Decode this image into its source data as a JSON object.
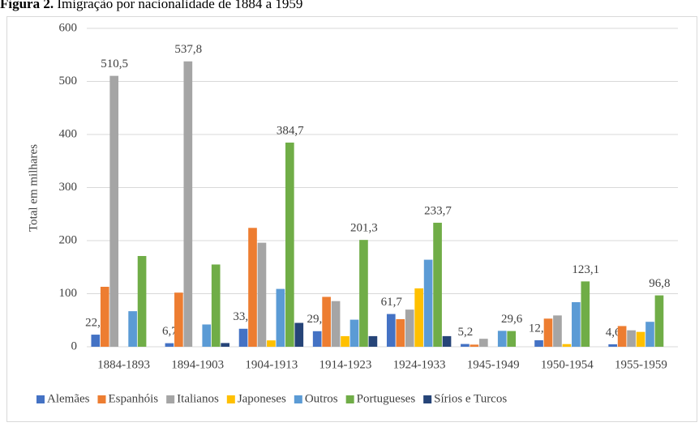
{
  "chart_data": {
    "type": "bar",
    "title_label": "Figura 2.",
    "title": "Imigração por nacionalidade de 1884 a 1959",
    "y_label": "Total em milhares",
    "categories": [
      "1884-1893",
      "1894-1903",
      "1904-1913",
      "1914-1923",
      "1924-1933",
      "1945-1949",
      "1950-1954",
      "1955-1959"
    ],
    "series": [
      {
        "name": "Alemães",
        "color": "#4472c4",
        "values": [
          22.8,
          6.7,
          33.9,
          29.3,
          61.7,
          5.2,
          12.2,
          4.6
        ],
        "value_labels": [
          "22,8",
          "6,7",
          "33,9",
          "29,3",
          "61,7",
          "5,2",
          "12,2",
          "4,6"
        ]
      },
      {
        "name": "Espanhóis",
        "color": "#ed7d31",
        "values": [
          113,
          102,
          224,
          94,
          52,
          4,
          53,
          39
        ]
      },
      {
        "name": "Italianos",
        "color": "#a5a5a5",
        "values": [
          510.5,
          537.8,
          196,
          86,
          70,
          15,
          59,
          31
        ],
        "value_labels": [
          "510,5",
          "537,8",
          null,
          null,
          null,
          null,
          null,
          null
        ]
      },
      {
        "name": "Japoneses",
        "color": "#ffc000",
        "values": [
          0,
          0,
          12,
          20,
          110,
          0,
          5,
          28
        ]
      },
      {
        "name": "Outros",
        "color": "#5b9bd5",
        "values": [
          67,
          42,
          109,
          51,
          164,
          30,
          84,
          47
        ]
      },
      {
        "name": "Portugueses",
        "color": "#70ad47",
        "values": [
          171,
          155,
          384.7,
          201.3,
          233.7,
          29.6,
          123.1,
          96.8
        ],
        "value_labels": [
          null,
          null,
          "384,7",
          "201,3",
          "233,7",
          "29,6",
          "123,1",
          "96,8"
        ]
      },
      {
        "name": "Sírios e Turcos",
        "color": "#264478",
        "values": [
          0,
          7,
          45,
          20,
          20,
          0,
          0,
          0
        ]
      }
    ],
    "ylim": [
      0,
      600
    ],
    "yticks": [
      0,
      100,
      200,
      300,
      400,
      500,
      600
    ],
    "grid": true,
    "legend": "bottom"
  }
}
